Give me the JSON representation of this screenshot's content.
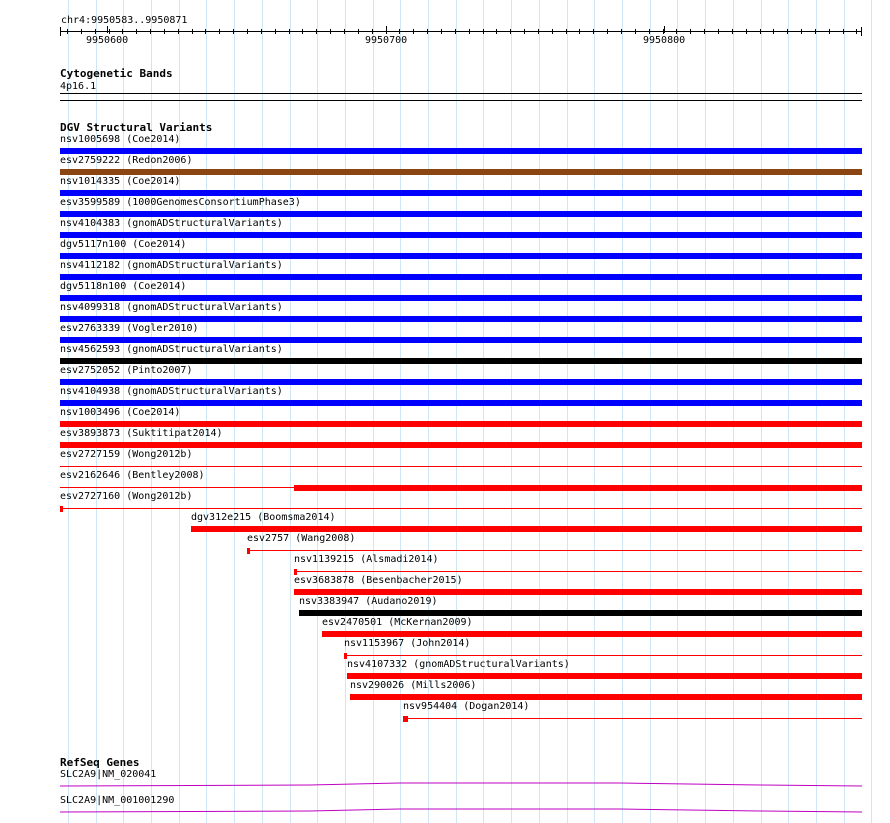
{
  "location": "chr4:9950583..9950871",
  "ruler": {
    "ticks": [
      {
        "pos": 9950600,
        "label": "9950600"
      },
      {
        "pos": 9950700,
        "label": "9950700"
      },
      {
        "pos": 9950800,
        "label": "9950800"
      }
    ]
  },
  "colors": {
    "blue": "#0000ff",
    "brown": "#8b4513",
    "red": "#ff0000",
    "black": "#000000",
    "gene": "#c000c0",
    "grid": "#cfe6f4"
  },
  "cytoband": {
    "title": "Cytogenetic Bands",
    "band": "4p16.1"
  },
  "dgv": {
    "title": "DGV Structural Variants",
    "features": [
      {
        "id": "nsv1005698",
        "study": "(Coe2014)",
        "start": 9950583,
        "end": 9950871,
        "color": "blue"
      },
      {
        "id": "esv2759222",
        "study": "(Redon2006)",
        "start": 9950583,
        "end": 9950871,
        "color": "brown"
      },
      {
        "id": "nsv1014335",
        "study": "(Coe2014)",
        "start": 9950583,
        "end": 9950871,
        "color": "blue"
      },
      {
        "id": "esv3599589",
        "study": "(1000GenomesConsortiumPhase3)",
        "start": 9950583,
        "end": 9950871,
        "color": "blue"
      },
      {
        "id": "nsv4104383",
        "study": "(gnomADStructuralVariants)",
        "start": 9950583,
        "end": 9950871,
        "color": "blue"
      },
      {
        "id": "dgv5117n100",
        "study": "(Coe2014)",
        "start": 9950583,
        "end": 9950871,
        "color": "blue"
      },
      {
        "id": "nsv4112182",
        "study": "(gnomADStructuralVariants)",
        "start": 9950583,
        "end": 9950871,
        "color": "blue"
      },
      {
        "id": "dgv5118n100",
        "study": "(Coe2014)",
        "start": 9950583,
        "end": 9950871,
        "color": "blue"
      },
      {
        "id": "nsv4099318",
        "study": "(gnomADStructuralVariants)",
        "start": 9950583,
        "end": 9950871,
        "color": "blue"
      },
      {
        "id": "esv2763339",
        "study": "(Vogler2010)",
        "start": 9950583,
        "end": 9950871,
        "color": "blue"
      },
      {
        "id": "nsv4562593",
        "study": "(gnomADStructuralVariants)",
        "start": 9950583,
        "end": 9950871,
        "color": "black"
      },
      {
        "id": "esv2752052",
        "study": "(Pinto2007)",
        "start": 9950583,
        "end": 9950871,
        "color": "blue"
      },
      {
        "id": "nsv4104938",
        "study": "(gnomADStructuralVariants)",
        "start": 9950583,
        "end": 9950871,
        "color": "blue"
      },
      {
        "id": "nsv1003496",
        "study": "(Coe2014)",
        "start": 9950583,
        "end": 9950871,
        "color": "red"
      },
      {
        "id": "esv3893873",
        "study": "(Suktitipat2014)",
        "start": 9950583,
        "end": 9950871,
        "color": "red"
      },
      {
        "id": "esv2727159",
        "study": "(Wong2012b)",
        "start": 9950583,
        "end": 9950871,
        "color": "red",
        "thin": true
      },
      {
        "id": "esv2162646",
        "study": "(Bentley2008)",
        "start": 9950583,
        "end": 9950871,
        "color": "red",
        "thin": true,
        "thick_start": 9950667
      },
      {
        "id": "esv2727160",
        "study": "(Wong2012b)",
        "start": 9950583,
        "end": 9950871,
        "color": "red",
        "thin": true,
        "thick_start": 9950583,
        "thick_end": 9950584
      },
      {
        "id": "dgv312e215",
        "study": "(Boomsma2014)",
        "start": 9950630,
        "end": 9950871,
        "color": "red"
      },
      {
        "id": "esv2757",
        "study": "(Wang2008)",
        "start": 9950650,
        "end": 9950871,
        "color": "red",
        "thin": true,
        "thick_start": 9950650,
        "thick_end": 9950651
      },
      {
        "id": "nsv1139215",
        "study": "(Alsmadi2014)",
        "start": 9950667,
        "end": 9950871,
        "color": "red",
        "thin": true,
        "thick_start": 9950667,
        "thick_end": 9950668
      },
      {
        "id": "esv3683878",
        "study": "(Besenbacher2015)",
        "start": 9950667,
        "end": 9950871,
        "color": "red"
      },
      {
        "id": "nsv3383947",
        "study": "(Audano2019)",
        "start": 9950669,
        "end": 9950871,
        "color": "black"
      },
      {
        "id": "esv2470501",
        "study": "(McKernan2009)",
        "start": 9950677,
        "end": 9950871,
        "color": "red"
      },
      {
        "id": "nsv1153967",
        "study": "(John2014)",
        "start": 9950685,
        "end": 9950871,
        "color": "red",
        "thin": true,
        "thick_start": 9950685,
        "thick_end": 9950686
      },
      {
        "id": "nsv4107332",
        "study": "(gnomADStructuralVariants)",
        "start": 9950686,
        "end": 9950871,
        "color": "red"
      },
      {
        "id": "nsv290026",
        "study": "(Mills2006)",
        "start": 9950687,
        "end": 9950871,
        "color": "red"
      },
      {
        "id": "nsv954404",
        "study": "(Dogan2014)",
        "start": 9950706,
        "end": 9950871,
        "color": "red",
        "thin": true,
        "thick_start": 9950706,
        "thick_end": 9950708
      }
    ]
  },
  "refseq": {
    "title": "RefSeq Genes",
    "genes": [
      {
        "label": "SLC2A9|NM_020041"
      },
      {
        "label": "SLC2A9|NM_001001290"
      }
    ]
  }
}
